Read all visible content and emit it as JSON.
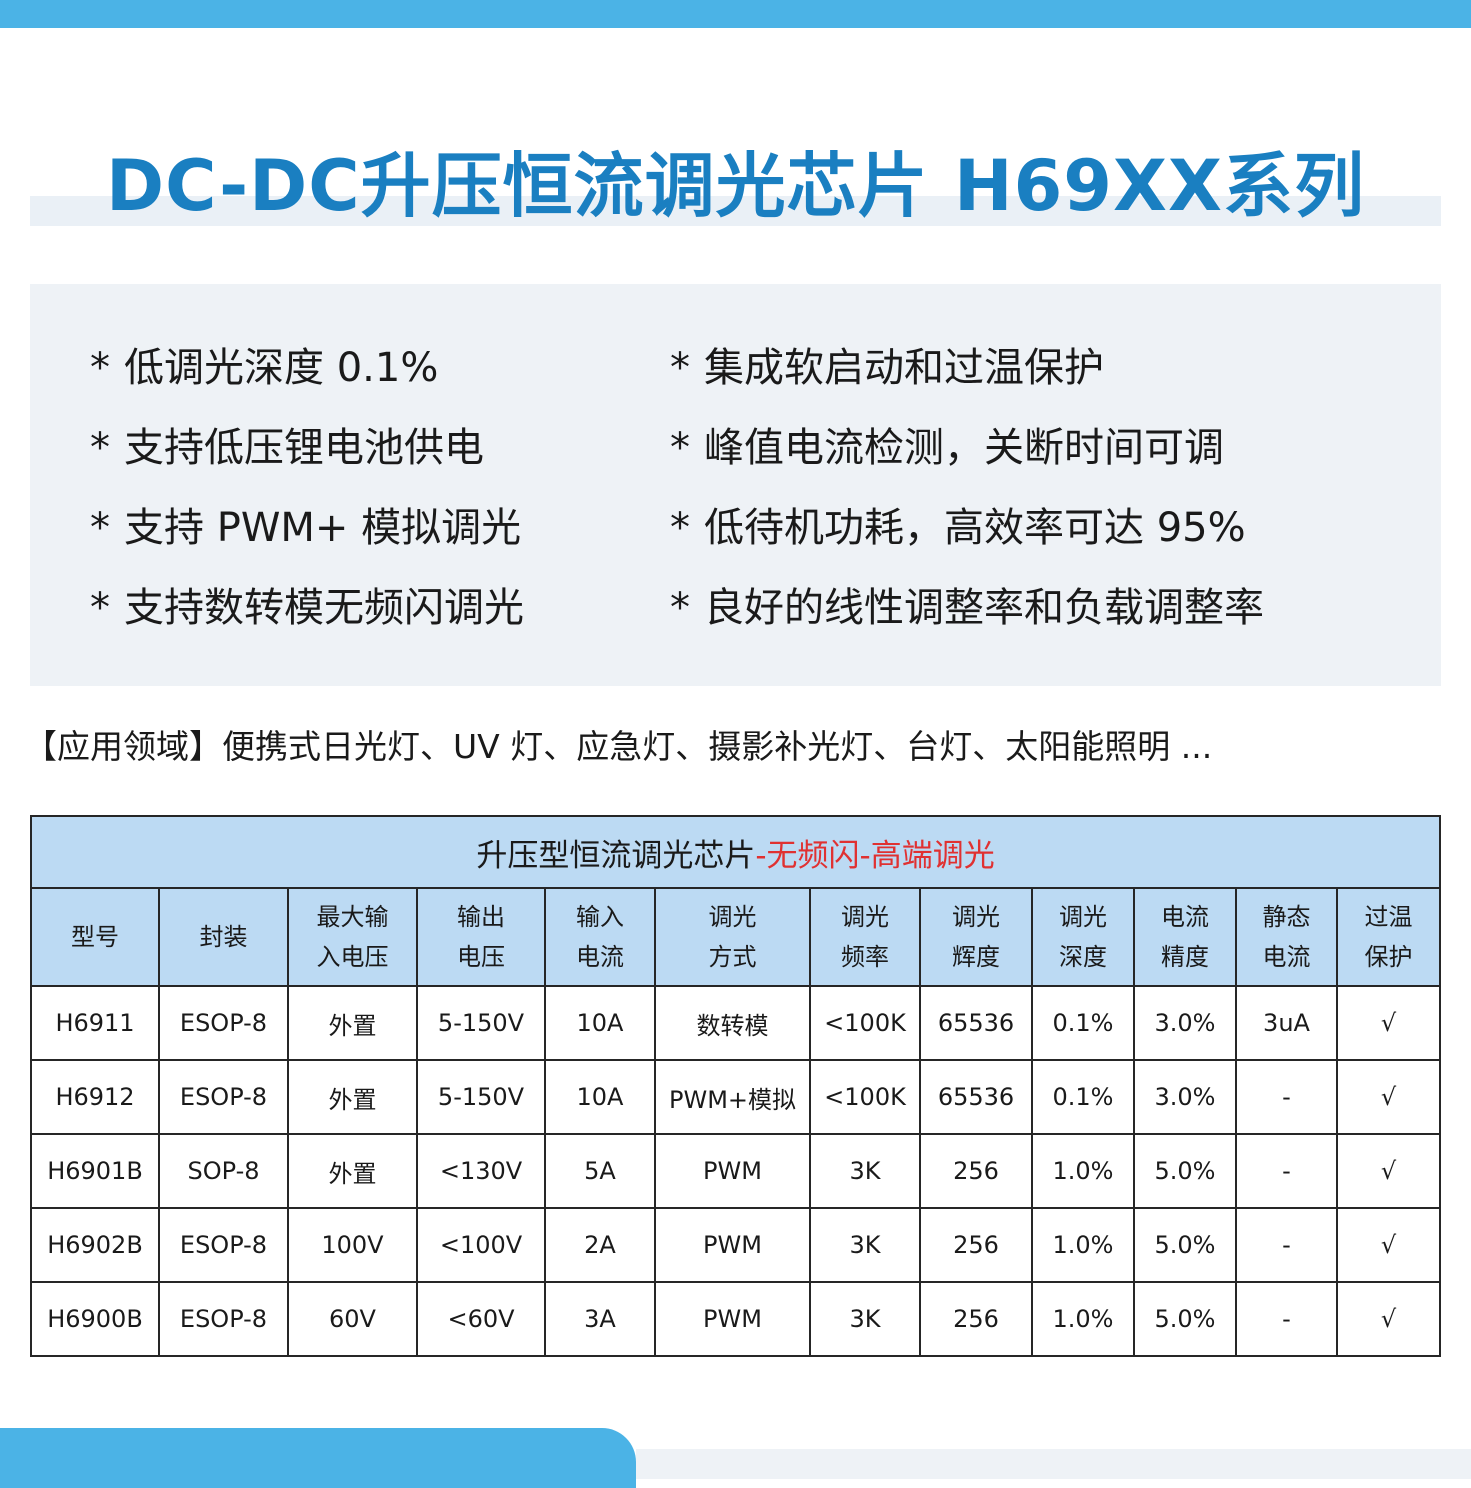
{
  "header": {
    "title": "DC-DC升压恒流调光芯片 H69XX系列"
  },
  "features": {
    "star": "*",
    "left": [
      "低调光深度 0.1%",
      "支持低压锂电池供电",
      "支持 PWM+ 模拟调光",
      "支持数转模无频闪调光"
    ],
    "right": [
      "集成软启动和过温保护",
      "峰值电流检测，关断时间可调",
      "低待机功耗，高效率可达 95%",
      "良好的线性调整率和负载调整率"
    ]
  },
  "application": {
    "text": "【应用领域】便携式日光灯、UV 灯、应急灯、摄影补光灯、台灯、太阳能照明 ..."
  },
  "table": {
    "caption_main": "升压型恒流调光芯片",
    "caption_accent": "-无频闪-高端调光",
    "accent_color": "#e03131",
    "headers": [
      [
        "型号"
      ],
      [
        "封装"
      ],
      [
        "最大输",
        "入电压"
      ],
      [
        "输出",
        "电压"
      ],
      [
        "输入",
        "电流"
      ],
      [
        "调光",
        "方式"
      ],
      [
        "调光",
        "频率"
      ],
      [
        "调光",
        "辉度"
      ],
      [
        "调光",
        "深度"
      ],
      [
        "电流",
        "精度"
      ],
      [
        "静态",
        "电流"
      ],
      [
        "过温",
        "保护"
      ]
    ],
    "rows": [
      [
        "H6911",
        "ESOP-8",
        "外置",
        "5-150V",
        "10A",
        "数转模",
        "<100K",
        "65536",
        "0.1%",
        "3.0%",
        "3uA",
        "√"
      ],
      [
        "H6912",
        "ESOP-8",
        "外置",
        "5-150V",
        "10A",
        "PWM+模拟",
        "<100K",
        "65536",
        "0.1%",
        "3.0%",
        "-",
        "√"
      ],
      [
        "H6901B",
        "SOP-8",
        "外置",
        "<130V",
        "5A",
        "PWM",
        "3K",
        "256",
        "1.0%",
        "5.0%",
        "-",
        "√"
      ],
      [
        "H6902B",
        "ESOP-8",
        "100V",
        "<100V",
        "2A",
        "PWM",
        "3K",
        "256",
        "1.0%",
        "5.0%",
        "-",
        "√"
      ],
      [
        "H6900B",
        "ESOP-8",
        "60V",
        "<60V",
        "3A",
        "PWM",
        "3K",
        "256",
        "1.0%",
        "5.0%",
        "-",
        "√"
      ]
    ]
  },
  "colors": {
    "brand_blue": "#4bb3e6",
    "title_blue": "#1a7fc1",
    "table_header_bg": "#bcdaf3",
    "panel_bg": "#eef2f6"
  }
}
